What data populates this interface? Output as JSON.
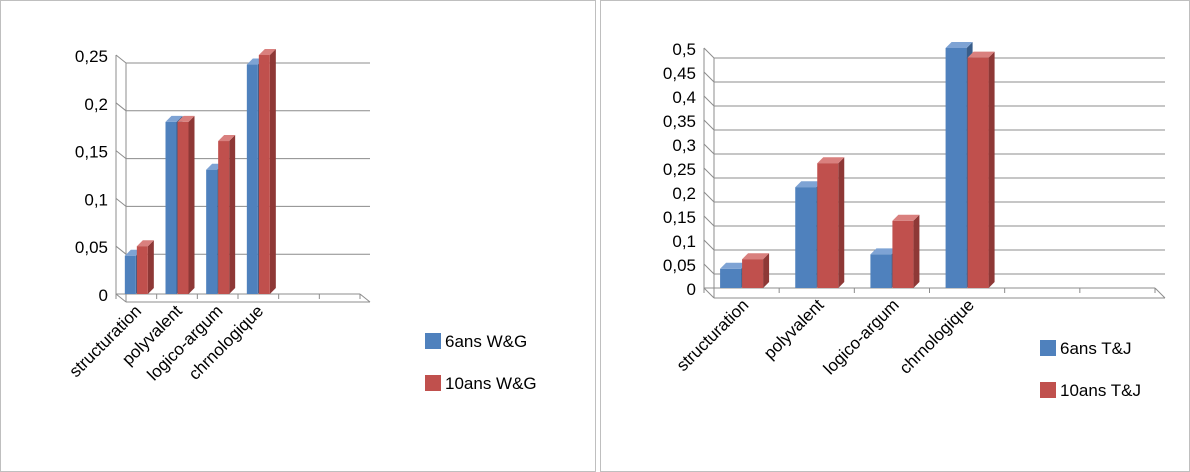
{
  "chart_data": [
    {
      "type": "bar",
      "categories": [
        "structuration",
        "polyvalent",
        "logico-argum",
        "chrnologique"
      ],
      "series": [
        {
          "name": "6ans W&G",
          "values": [
            0.04,
            0.18,
            0.13,
            0.24
          ]
        },
        {
          "name": "10ans W&G",
          "values": [
            0.05,
            0.18,
            0.16,
            0.25
          ]
        }
      ],
      "yticks": [
        "0",
        "0,05",
        "0,1",
        "0,15",
        "0,2",
        "0,25"
      ],
      "ylim": [
        0,
        0.25
      ],
      "slots": 6,
      "grid": true,
      "legend_position": "right"
    },
    {
      "type": "bar",
      "categories": [
        "structuration",
        "polyvalent",
        "logico-argum",
        "chrnologique"
      ],
      "series": [
        {
          "name": "6ans T&J",
          "values": [
            0.04,
            0.21,
            0.07,
            0.5
          ]
        },
        {
          "name": "10ans T&J",
          "values": [
            0.06,
            0.26,
            0.14,
            0.48
          ]
        }
      ],
      "yticks": [
        "0",
        "0,05",
        "0,1",
        "0,15",
        "0,2",
        "0,25",
        "0,3",
        "0,35",
        "0,4",
        "0,45",
        "0,5"
      ],
      "ylim": [
        0,
        0.5
      ],
      "slots": 6,
      "grid": true,
      "legend_position": "right"
    }
  ],
  "colors": {
    "series1": "#4f81bd",
    "series1_dark": "#385d8a",
    "series1_top": "#7ea3d4",
    "series2": "#c0504d",
    "series2_dark": "#8e3836",
    "series2_top": "#d9807e",
    "grid": "#8c8c8c",
    "border": "#bfbfbf"
  }
}
